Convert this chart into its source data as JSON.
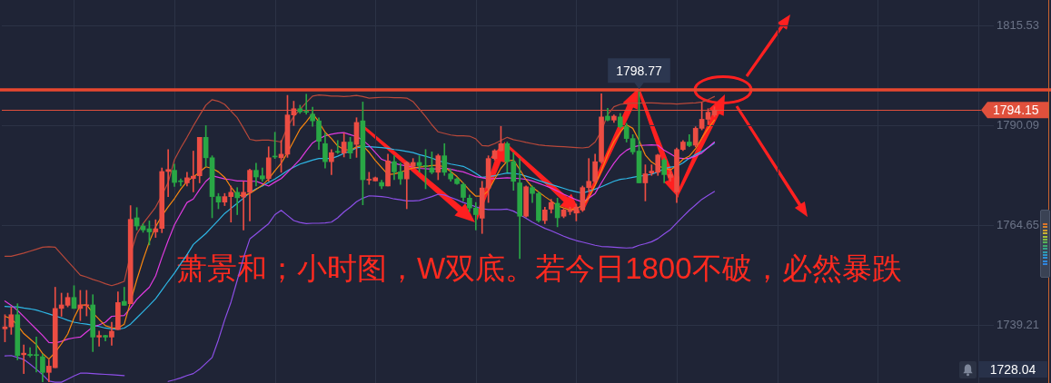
{
  "chart_data": {
    "type": "candlestick",
    "categories": [
      null,
      null,
      null,
      null,
      null,
      null,
      null,
      null,
      null,
      null,
      null,
      null,
      null,
      null,
      null,
      null,
      null,
      null,
      null,
      null,
      null,
      null,
      null,
      null,
      null,
      null,
      null,
      null,
      null,
      null,
      null,
      null,
      null,
      null,
      null,
      null,
      null,
      null,
      null,
      null,
      null,
      null,
      null,
      null,
      null,
      null,
      null,
      null,
      null,
      null,
      null,
      null,
      null,
      null,
      null,
      null,
      null,
      null,
      null,
      null,
      null,
      null,
      null,
      null,
      null,
      null,
      null,
      null,
      null,
      null,
      null,
      null,
      null,
      null,
      null,
      null,
      null,
      null,
      null,
      null,
      null,
      null,
      null,
      null,
      null,
      null,
      null,
      null,
      null,
      null,
      null,
      null,
      null,
      null,
      null,
      null,
      null,
      null,
      null,
      null,
      null,
      null,
      null,
      null,
      null,
      null,
      null,
      null,
      null,
      null,
      null,
      null,
      null,
      null,
      null,
      null,
      null,
      null,
      null,
      null,
      null,
      null,
      null,
      null,
      null,
      null,
      null,
      null,
      null,
      null,
      null,
      null,
      null,
      null,
      null,
      null,
      null,
      null,
      null,
      null,
      null,
      null,
      null,
      null,
      null,
      null,
      null,
      null,
      null,
      null,
      null,
      null,
      null,
      null,
      null,
      null,
      null,
      null
    ],
    "ohlc": [
      [
        1738.4,
        1742.0,
        1735.1,
        1738.9
      ],
      [
        1738.9,
        1744.0,
        1737.0,
        1742.0
      ],
      [
        1742.0,
        1744.8,
        1730.5,
        1731.6
      ],
      [
        1731.8,
        1734.3,
        1727.0,
        1732.2
      ],
      [
        1731.9,
        1733.6,
        1731.2,
        1731.6
      ],
      [
        1731.8,
        1736.3,
        1727.4,
        1731.6
      ],
      [
        1731.3,
        1732.0,
        1724.9,
        1727.3
      ],
      [
        1727.3,
        1730.5,
        1724.9,
        1728.9
      ],
      [
        1728.5,
        1749.0,
        1728.5,
        1743.6
      ],
      [
        1743.6,
        1747.5,
        1741.6,
        1744.5
      ],
      [
        1744.4,
        1747.5,
        1744.0,
        1746.4
      ],
      [
        1746.4,
        1749.4,
        1743.6,
        1743.6
      ],
      [
        1743.6,
        1748.2,
        1740.5,
        1744.5
      ],
      [
        1744.3,
        1748.2,
        1741.7,
        1744.5
      ],
      [
        1744.5,
        1747.1,
        1732.6,
        1736.3
      ],
      [
        1736.3,
        1737.8,
        1734.0,
        1736.7
      ],
      [
        1736.7,
        1736.8,
        1735.3,
        1736.3
      ],
      [
        1736.3,
        1740.1,
        1734.2,
        1737.8
      ],
      [
        1738.2,
        1747.8,
        1738.2,
        1745.1
      ],
      [
        1745.4,
        1749.0,
        1744.4,
        1744.4
      ],
      [
        1744.8,
        1769.8,
        1744.8,
        1766.3
      ],
      [
        1766.7,
        1769.3,
        1763.6,
        1764.6
      ],
      [
        1764.6,
        1765.2,
        1763.0,
        1763.6
      ],
      [
        1763.9,
        1765.9,
        1759.8,
        1763.1
      ],
      [
        1763.1,
        1766.2,
        1761.7,
        1763.9
      ],
      [
        1764.0,
        1779.4,
        1762.9,
        1778.5
      ],
      [
        1778.5,
        1784.1,
        1772.1,
        1779.0
      ],
      [
        1778.8,
        1780.4,
        1774.7,
        1775.7
      ],
      [
        1776.1,
        1776.6,
        1774.8,
        1775.9
      ],
      [
        1775.6,
        1778.3,
        1774.8,
        1776.9
      ],
      [
        1776.7,
        1783.7,
        1773.3,
        1777.3
      ],
      [
        1777.4,
        1787.2,
        1775.6,
        1787.2
      ],
      [
        1787.2,
        1790.2,
        1779.8,
        1782.0
      ],
      [
        1782.0,
        1782.5,
        1766.7,
        1772.1
      ],
      [
        1772.1,
        1772.9,
        1769.0,
        1770.7
      ],
      [
        1770.7,
        1772.9,
        1769.8,
        1772.1
      ],
      [
        1772.1,
        1774.8,
        1765.6,
        1773.2
      ],
      [
        1773.2,
        1774.4,
        1767.5,
        1771.8
      ],
      [
        1772.0,
        1776.0,
        1763.6,
        1773.2
      ],
      [
        1773.2,
        1779.1,
        1765.9,
        1778.8
      ],
      [
        1778.8,
        1780.6,
        1774.8,
        1777.1
      ],
      [
        1777.4,
        1779.4,
        1776.0,
        1776.6
      ],
      [
        1776.7,
        1784.8,
        1776.0,
        1782.0
      ],
      [
        1782.4,
        1788.5,
        1781.8,
        1782.2
      ],
      [
        1782.0,
        1786.4,
        1778.3,
        1782.9
      ],
      [
        1782.9,
        1797.9,
        1782.1,
        1792.9
      ],
      [
        1792.9,
        1796.4,
        1790.2,
        1794.5
      ],
      [
        1794.5,
        1795.4,
        1793.3,
        1793.7
      ],
      [
        1793.8,
        1798.2,
        1793.1,
        1793.6
      ],
      [
        1793.1,
        1794.9,
        1790.0,
        1791.4
      ],
      [
        1791.4,
        1792.2,
        1784.1,
        1786.2
      ],
      [
        1785.6,
        1788.3,
        1779.4,
        1781.0
      ],
      [
        1781.0,
        1784.1,
        1777.7,
        1783.3
      ],
      [
        1783.6,
        1786.4,
        1783.1,
        1783.4
      ],
      [
        1783.2,
        1788.3,
        1782.2,
        1786.0
      ],
      [
        1786.0,
        1787.2,
        1781.8,
        1783.2
      ],
      [
        1785.4,
        1792.2,
        1782.1,
        1791.0
      ],
      [
        1791.4,
        1796.2,
        1770.0,
        1776.4
      ],
      [
        1776.3,
        1778.3,
        1775.2,
        1776.5
      ],
      [
        1776.1,
        1777.1,
        1776.1,
        1776.9
      ],
      [
        1775.7,
        1776.3,
        1774.1,
        1774.8
      ],
      [
        1774.8,
        1782.9,
        1774.8,
        1781.2
      ],
      [
        1781.0,
        1782.5,
        1776.4,
        1778.4
      ],
      [
        1778.4,
        1780.6,
        1775.2,
        1776.6
      ],
      [
        1776.6,
        1781.0,
        1769.0,
        1780.8
      ],
      [
        1779.8,
        1781.8,
        1779.4,
        1780.8
      ],
      [
        1780.8,
        1782.5,
        1778.3,
        1780.0
      ],
      [
        1780.0,
        1784.1,
        1774.1,
        1779.8
      ],
      [
        1779.4,
        1783.5,
        1777.9,
        1778.3
      ],
      [
        1778.3,
        1782.9,
        1776.4,
        1782.5
      ],
      [
        1782.5,
        1785.6,
        1777.5,
        1778.3
      ],
      [
        1777.9,
        1779.1,
        1776.0,
        1776.6
      ],
      [
        1776.6,
        1776.9,
        1775.2,
        1775.4
      ],
      [
        1775.2,
        1775.6,
        1771.0,
        1771.9
      ],
      [
        1771.7,
        1772.5,
        1768.3,
        1769.2
      ],
      [
        1769.2,
        1770.6,
        1763.6,
        1767.5
      ],
      [
        1766.6,
        1776.0,
        1762.7,
        1774.3
      ],
      [
        1774.3,
        1782.5,
        1770.6,
        1781.8
      ],
      [
        1781.8,
        1784.1,
        1781.4,
        1783.8
      ],
      [
        1783.8,
        1790.0,
        1783.7,
        1785.6
      ],
      [
        1785.6,
        1786.0,
        1778.3,
        1781.0
      ],
      [
        1781.0,
        1783.3,
        1773.7,
        1776.0
      ],
      [
        1775.6,
        1781.8,
        1756.3,
        1767.1
      ],
      [
        1767.1,
        1774.8,
        1766.9,
        1774.6
      ],
      [
        1774.4,
        1774.8,
        1770.6,
        1772.9
      ],
      [
        1772.9,
        1773.3,
        1765.6,
        1766.0
      ],
      [
        1766.0,
        1769.4,
        1765.2,
        1768.7
      ],
      [
        1768.9,
        1771.4,
        1767.9,
        1770.6
      ],
      [
        1770.4,
        1771.7,
        1764.4,
        1766.7
      ],
      [
        1767.1,
        1769.0,
        1766.7,
        1768.7
      ],
      [
        1768.3,
        1769.4,
        1767.5,
        1768.6
      ],
      [
        1767.9,
        1770.2,
        1765.9,
        1769.4
      ],
      [
        1768.7,
        1774.8,
        1768.3,
        1774.4
      ],
      [
        1774.4,
        1781.8,
        1773.3,
        1776.0
      ],
      [
        1776.0,
        1782.9,
        1775.6,
        1781.0
      ],
      [
        1781.0,
        1798.3,
        1780.6,
        1792.4
      ],
      [
        1792.6,
        1794.6,
        1791.4,
        1791.6
      ],
      [
        1791.6,
        1792.9,
        1791.0,
        1792.6
      ],
      [
        1792.4,
        1793.3,
        1789.5,
        1789.9
      ],
      [
        1789.9,
        1790.8,
        1786.0,
        1786.9
      ],
      [
        1786.9,
        1787.9,
        1782.9,
        1783.5
      ],
      [
        1783.7,
        1798.77,
        1775.6,
        1775.6
      ],
      [
        1775.6,
        1780.2,
        1771.0,
        1777.9
      ],
      [
        1778.1,
        1780.2,
        1777.5,
        1778.6
      ],
      [
        1778.3,
        1782.9,
        1777.5,
        1782.7
      ],
      [
        1781.4,
        1781.8,
        1775.6,
        1777.7
      ],
      [
        1777.0,
        1778.5,
        1776.0,
        1777.7
      ],
      [
        1773.3,
        1784.5,
        1770.6,
        1784.1
      ],
      [
        1784.1,
        1786.4,
        1783.8,
        1786.0
      ],
      [
        1786.0,
        1787.9,
        1784.8,
        1785.1
      ],
      [
        1785.2,
        1789.9,
        1784.8,
        1789.5
      ],
      [
        1789.5,
        1796.0,
        1789.1,
        1791.8
      ],
      [
        1791.8,
        1794.5,
        1790.6,
        1793.6
      ],
      [
        1792.9,
        1795.0,
        1792.5,
        1794.15
      ],
      null,
      null,
      null,
      null,
      null,
      null,
      null,
      null,
      null,
      null,
      null,
      null,
      null,
      null,
      null,
      null,
      null,
      null,
      null,
      null,
      null,
      null,
      null,
      null,
      null,
      null,
      null,
      null,
      null,
      null,
      null,
      null,
      null,
      null,
      null,
      null,
      null,
      null,
      null,
      null,
      null,
      null,
      null,
      null
    ],
    "colors": [
      "#ec4d43",
      "#ec4d43",
      "#29a745",
      "#ec4d43",
      "#29a745",
      "#29a745",
      "#29a745",
      "#ec4d43",
      "#ec4d43",
      "#ec4d43",
      "#ec4d43",
      "#29a745",
      "#ec4d43",
      "#ec4d43",
      "#29a745",
      "#ec4d43",
      "#29a745",
      "#ec4d43",
      "#ec4d43",
      "#29a745",
      "#ec4d43",
      "#29a745",
      "#29a745",
      "#29a745",
      "#ec4d43",
      "#ec4d43",
      "#ec4d43",
      "#29a745",
      "#29a745",
      "#ec4d43",
      "#ec4d43",
      "#ec4d43",
      "#29a745",
      "#29a745",
      "#29a745",
      "#ec4d43",
      "#ec4d43",
      "#29a745",
      "#ec4d43",
      "#ec4d43",
      "#29a745",
      "#29a745",
      "#ec4d43",
      "#29a745",
      "#ec4d43",
      "#ec4d43",
      "#ec4d43",
      "#29a745",
      "#29a745",
      "#29a745",
      "#29a745",
      "#29a745",
      "#ec4d43",
      "#29a745",
      "#ec4d43",
      "#29a745",
      "#ec4d43",
      "#29a745",
      "#ec4d43",
      "#ec4d43",
      "#29a745",
      "#ec4d43",
      "#29a745",
      "#29a745",
      "#ec4d43",
      "#ec4d43",
      "#29a745",
      "#29a745",
      "#29a745",
      "#ec4d43",
      "#29a745",
      "#29a745",
      "#29a745",
      "#29a745",
      "#29a745",
      "#29a745",
      "#ec4d43",
      "#ec4d43",
      "#ec4d43",
      "#ec4d43",
      "#29a745",
      "#29a745",
      "#29a745",
      "#ec4d43",
      "#29a745",
      "#29a745",
      "#ec4d43",
      "#ec4d43",
      "#29a745",
      "#ec4d43",
      "#ec4d43",
      "#ec4d43",
      "#ec4d43",
      "#ec4d43",
      "#ec4d43",
      "#ec4d43",
      "#29a745",
      "#ec4d43",
      "#29a745",
      "#29a745",
      "#29a745",
      "#29a745",
      "#ec4d43",
      "#ec4d43",
      "#ec4d43",
      "#29a745",
      "#ec4d43",
      "#ec4d43",
      "#ec4d43",
      "#29a745",
      "#ec4d43",
      "#ec4d43",
      "#ec4d43",
      "#ec4d43",
      null,
      null,
      null,
      null,
      null,
      null,
      null,
      null,
      null,
      null,
      null,
      null,
      null,
      null,
      null,
      null,
      null,
      null,
      null,
      null,
      null,
      null,
      null,
      null,
      null,
      null,
      null,
      null,
      null,
      null,
      null,
      null,
      null,
      null,
      null,
      null,
      null,
      null,
      null,
      null,
      null,
      null,
      null,
      null
    ],
    "series": [
      {
        "type": "line",
        "color": "#b8483a",
        "values": [
          1756.9,
          1756.9,
          1757.3,
          1757.7,
          1758.2,
          1758.7,
          1759.2,
          1759.3,
          1759.2,
          1757.4,
          1755.6,
          1753.9,
          1752.1,
          1751.6,
          1751.0,
          1750.5,
          1749.9,
          1749.4,
          1749.9,
          1750.5,
          1757.4,
          1762.6,
          1765.2,
          1767.3,
          1769.4,
          1772.4,
          1775.7,
          1781.5,
          1784.5,
          1787.2,
          1790.1,
          1792.8,
          1795.4,
          1796.8,
          1796.4,
          1795.6,
          1793.9,
          1792.2,
          1789.5,
          1786.7,
          1786.4,
          1786.5,
          1786.5,
          1786.3,
          1786.0,
          1789.9,
          1792.5,
          1794.3,
          1796.1,
          1797.7,
          1798.0,
          1797.9,
          1797.7,
          1797.7,
          1797.6,
          1797.7,
          1797.9,
          1797.6,
          1797.2,
          1797.3,
          1797.4,
          1797.4,
          1797.3,
          1797.3,
          1797.2,
          1796.3,
          1794.4,
          1792.5,
          1790.4,
          1788.6,
          1788.2,
          1787.8,
          1787.6,
          1787.6,
          1787.5,
          1786.8,
          1785.1,
          1785.0,
          1785.6,
          1786.4,
          1787.2,
          1786.6,
          1786.3,
          1785.9,
          1785.6,
          1785.3,
          1785.1,
          1785.0,
          1784.9,
          1784.8,
          1784.7,
          1784.6,
          1784.5,
          1784.7,
          1786.0,
          1788.8,
          1793.0,
          1795.0,
          1795.6,
          1795.8,
          1795.9,
          1795.9,
          1796.0,
          1796.0,
          1795.9,
          1795.8,
          1795.8,
          1795.7,
          1795.8,
          1795.9,
          1796.0,
          1796.2,
          1796.8,
          1797.6,
          null,
          null,
          null,
          null,
          null,
          null,
          null,
          null,
          null,
          null,
          null,
          null,
          null,
          null,
          null,
          null,
          null,
          null,
          null,
          null,
          null,
          null,
          null,
          null,
          null,
          null,
          null,
          null,
          null,
          null,
          null,
          null,
          null,
          null,
          null,
          null,
          null,
          null,
          null,
          null,
          null,
          null,
          null,
          null
        ]
      },
      {
        "type": "line",
        "color": "#f7860f",
        "values": [
          1741.6,
          1741.0,
          1739.3,
          1737.2,
          1735.8,
          1734.4,
          1732.1,
          1730.7,
          1732.4,
          1734.6,
          1737.1,
          1741.2,
          1744.4,
          1744.5,
          1742.5,
          1740.8,
          1739.2,
          1738.7,
          1738.6,
          1739.6,
          1745.3,
          1750.9,
          1756.0,
          1760.6,
          1764.4,
          1767.2,
          1769.5,
          1771.6,
          1774.0,
          1776.0,
          1777.1,
          1778.3,
          1779.7,
          1779.3,
          1778.4,
          1777.0,
          1774.5,
          1772.5,
          1772.3,
          1772.9,
          1773.9,
          1775.0,
          1776.6,
          1778.7,
          1780.6,
          1783.3,
          1786.3,
          1789.3,
          1791.2,
          1793.3,
          1791.1,
          1788.5,
          1786.9,
          1785.0,
          1784.1,
          1783.9,
          1784.8,
          1785.1,
          1783.4,
          1781.3,
          1779.5,
          1777.7,
          1777.9,
          1778.3,
          1778.9,
          1779.4,
          1779.6,
          1779.8,
          1780.0,
          1780.1,
          1779.6,
          1778.5,
          1777.2,
          1775.5,
          1773.7,
          1772.2,
          1772.2,
          1773.6,
          1776.6,
          1779.3,
          1781.2,
          1781.4,
          1779.0,
          1776.4,
          1774.5,
          1773.3,
          1772.1,
          1771.0,
          1769.8,
          1769.2,
          1768.7,
          1769.1,
          1769.8,
          1771.9,
          1775.0,
          1778.7,
          1782.8,
          1786.1,
          1788.5,
          1790.4,
          1789.5,
          1786.4,
          1782.7,
          1780.9,
          1779.9,
          1779.4,
          1778.9,
          1780.0,
          1781.6,
          1782.4,
          1784.3,
          1787.0,
          1789.5,
          1791.6,
          null,
          null,
          null,
          null,
          null,
          null,
          null,
          null,
          null,
          null,
          null,
          null,
          null,
          null,
          null,
          null,
          null,
          null,
          null,
          null,
          null,
          null,
          null,
          null,
          null,
          null,
          null,
          null,
          null,
          null,
          null,
          null,
          null,
          null,
          null,
          null,
          null,
          null,
          null,
          null,
          null,
          null,
          null,
          null
        ]
      },
      {
        "type": "line",
        "color": "#e03ae0",
        "values": [
          1745.5,
          1744.4,
          1743.1,
          1741.5,
          1739.9,
          1738.3,
          1736.7,
          1734.9,
          1734.8,
          1735.2,
          1735.8,
          1736.1,
          1736.3,
          1737.6,
          1738.9,
          1739.4,
          1740.1,
          1741.6,
          1741.7,
          1741.8,
          1743.7,
          1745.9,
          1747.5,
          1749.0,
          1751.9,
          1756.6,
          1760.9,
          1764.9,
          1767.8,
          1770.6,
          1771.5,
          1773.9,
          1776.0,
          1777.4,
          1777.0,
          1776.6,
          1776.4,
          1776.1,
          1776.1,
          1776.0,
          1776.0,
          1775.4,
          1774.8,
          1775.8,
          1776.7,
          1778.3,
          1779.9,
          1781.6,
          1783.8,
          1785.8,
          1786.8,
          1787.6,
          1788.0,
          1788.3,
          1788.4,
          1787.9,
          1787.4,
          1786.5,
          1785.1,
          1783.3,
          1781.6,
          1781.0,
          1780.6,
          1780.2,
          1779.9,
          1779.6,
          1779.3,
          1779.2,
          1779.1,
          1779.2,
          1779.4,
          1779.1,
          1778.7,
          1778.4,
          1777.8,
          1777.2,
          1776.9,
          1776.6,
          1776.7,
          1776.8,
          1776.9,
          1776.8,
          1776.7,
          1776.5,
          1776.1,
          1775.5,
          1774.9,
          1774.3,
          1773.5,
          1772.7,
          1772.0,
          1771.3,
          1770.7,
          1771.7,
          1772.9,
          1775.6,
          1778.2,
          1780.6,
          1782.6,
          1783.9,
          1784.7,
          1785.1,
          1785.2,
          1785.3,
          1785.2,
          1783.9,
          1783.0,
          1782.0,
          1781.8,
          1781.8,
          1782.4,
          1783.2,
          1784.6,
          1786.0,
          null,
          null,
          null,
          null,
          null,
          null,
          null,
          null,
          null,
          null,
          null,
          null,
          null,
          null,
          null,
          null,
          null,
          null,
          null,
          null,
          null,
          null,
          null,
          null,
          null,
          null,
          null,
          null,
          null,
          null,
          null,
          null,
          null,
          null,
          null,
          null,
          null,
          null,
          null,
          null,
          null,
          null,
          null,
          null
        ]
      },
      {
        "type": "line",
        "color": "#2eb7e6",
        "values": [
          1744.1,
          1744.0,
          1744.0,
          1743.7,
          1743.5,
          1743.2,
          1742.7,
          1742.2,
          1741.7,
          1741.2,
          1740.6,
          1740.1,
          1739.8,
          1739.6,
          1739.3,
          1739.0,
          1738.6,
          1738.4,
          1738.3,
          1738.6,
          1739.6,
          1741.2,
          1742.8,
          1744.4,
          1746.1,
          1748.3,
          1750.5,
          1752.6,
          1755.0,
          1757.3,
          1759.9,
          1761.3,
          1762.7,
          1764.4,
          1766.1,
          1767.8,
          1769.1,
          1770.4,
          1771.7,
          1773.1,
          1774.1,
          1774.8,
          1775.7,
          1776.6,
          1777.6,
          1778.7,
          1779.6,
          1780.4,
          1780.9,
          1781.4,
          1781.8,
          1781.8,
          1781.8,
          1782.4,
          1783.1,
          1783.7,
          1784.5,
          1784.8,
          1784.8,
          1784.7,
          1784.6,
          1784.4,
          1784.1,
          1783.9,
          1783.6,
          1783.3,
          1782.8,
          1782.4,
          1781.9,
          1781.3,
          1780.8,
          1780.4,
          1780.1,
          1779.8,
          1779.0,
          1778.0,
          1777.0,
          1777.2,
          1777.4,
          1777.8,
          1778.1,
          1778.0,
          1777.8,
          1777.3,
          1776.8,
          1776.2,
          1775.7,
          1775.2,
          1774.7,
          1774.2,
          1773.7,
          1773.3,
          1773.0,
          1773.5,
          1774.0,
          1774.6,
          1775.3,
          1776.0,
          1776.5,
          1776.7,
          1777.0,
          1777.3,
          1777.5,
          1777.8,
          1778.4,
          1779.2,
          1779.6,
          1779.8,
          1780.7,
          1781.9,
          1782.8,
          1783.6,
          1784.6,
          1785.7,
          null,
          null,
          null,
          null,
          null,
          null,
          null,
          null,
          null,
          null,
          null,
          null,
          null,
          null,
          null,
          null,
          null,
          null,
          null,
          null,
          null,
          null,
          null,
          null,
          null,
          null,
          null,
          null,
          null,
          null,
          null,
          null,
          null,
          null,
          null,
          null,
          null,
          null,
          null,
          null,
          null,
          null,
          null,
          null
        ]
      },
      {
        "type": "line",
        "color": "#8d4fe8",
        "values": [
          1731.5,
          1731.6,
          1731.1,
          1730.6,
          1729.4,
          1728.1,
          1726.7,
          1725.1,
          1724.8,
          1724.8,
          1725.6,
          1726.4,
          1727.1,
          1727.1,
          1727.0,
          1726.9,
          1726.8,
          1726.7,
          1726.6,
          1726.5,
          null,
          null,
          null,
          null,
          null,
          null,
          1725.0,
          1725.4,
          1725.9,
          1726.5,
          1727.0,
          1728.1,
          1729.6,
          1731.1,
          1735.6,
          1740.7,
          1745.2,
          1750.8,
          1756.5,
          1761.3,
          1762.6,
          1763.9,
          1765.2,
          1767.5,
          1768.6,
          1767.3,
          1766.0,
          1765.5,
          1765.2,
          1765.3,
          1765.3,
          1765.4,
          1765.6,
          1766.7,
          1768.2,
          1769.4,
          1770.8,
          1771.7,
          1772.3,
          1772.2,
          1772.1,
          1771.9,
          1771.5,
          1771.3,
          1771.0,
          1771.0,
          1771.1,
          1771.6,
          1772.1,
          1772.7,
          1772.5,
          1771.9,
          1771.3,
          1770.6,
          1770.1,
          1769.5,
          1769.0,
          1768.8,
          1768.8,
          1768.8,
          1768.9,
          1768.4,
          1767.5,
          1766.6,
          1765.6,
          1764.8,
          1764.0,
          1763.4,
          1762.7,
          1762.0,
          1761.4,
          1760.9,
          1760.5,
          1760.1,
          1759.7,
          1759.4,
          1759.3,
          1759.2,
          1759.1,
          1759.0,
          1759.1,
          1759.7,
          1760.1,
          1760.6,
          1761.4,
          1762.6,
          1763.7,
          1765.4,
          1767.0,
          1768.6,
          1770.0,
          1771.4,
          1772.4,
          1773.4,
          null,
          null,
          null,
          null,
          null,
          null,
          null,
          null,
          null,
          null,
          null,
          null,
          null,
          null,
          null,
          null,
          null,
          null,
          null,
          null,
          null,
          null,
          null,
          null,
          null,
          null,
          null,
          null,
          null,
          null,
          null,
          null,
          null,
          null,
          null,
          null,
          null,
          null,
          null,
          null,
          null,
          null,
          null,
          null
        ]
      }
    ],
    "ylim": [
      1724.6,
      1822.2
    ],
    "yticks": [
      1739.21,
      1764.65,
      1790.09,
      1815.53
    ],
    "grid": true,
    "tick_labels": "y",
    "ref_lines": [
      {
        "axis": "y",
        "value": 1799.3,
        "color": "#e8472f"
      },
      {
        "axis": "y",
        "value": 1794.15,
        "label": "1794.15",
        "color": "#e0503c"
      }
    ],
    "annotations": [
      "萧景和；小时图，W双底。若今日1800不破，必然暴跌",
      {
        "text": "1798.77",
        "y": 1798.77
      },
      "1728.04"
    ]
  }
}
